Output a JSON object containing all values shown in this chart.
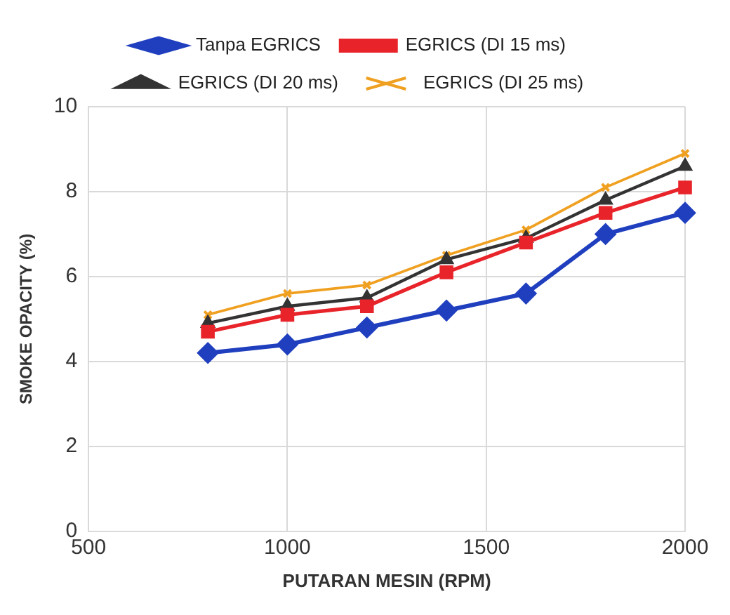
{
  "chart_data": {
    "type": "line",
    "xlabel": "PUTARAN MESIN (RPM)",
    "ylabel": "SMOKE OPACITY (%)",
    "x": [
      800,
      1000,
      1200,
      1400,
      1600,
      1800,
      2000
    ],
    "series": [
      {
        "name": "Tanpa EGRICS",
        "color": "#1f3fbf",
        "marker": "diamond",
        "values": [
          4.2,
          4.4,
          4.8,
          5.2,
          5.6,
          7.0,
          7.5
        ]
      },
      {
        "name": "EGRICS (DI 15 ms)",
        "color": "#e8242a",
        "marker": "square",
        "values": [
          4.7,
          5.1,
          5.3,
          6.1,
          6.8,
          7.5,
          8.1
        ]
      },
      {
        "name": "EGRICS (DI 20 ms)",
        "color": "#333333",
        "marker": "triangle",
        "values": [
          4.9,
          5.3,
          5.5,
          6.4,
          6.9,
          7.8,
          8.6
        ]
      },
      {
        "name": "EGRICS (DI 25 ms)",
        "color": "#f0a020",
        "marker": "cross",
        "values": [
          5.1,
          5.6,
          5.8,
          6.5,
          7.1,
          8.1,
          8.9
        ]
      }
    ],
    "xlim": [
      500,
      2000
    ],
    "xticks": [
      500,
      1000,
      1500,
      2000
    ],
    "ylim": [
      0,
      10
    ],
    "yticks": [
      0,
      2,
      4,
      6,
      8,
      10
    ],
    "grid": true,
    "legend": "top"
  }
}
